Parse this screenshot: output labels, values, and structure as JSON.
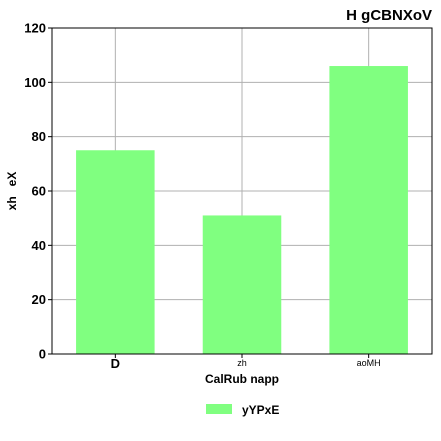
{
  "chart_data": {
    "type": "bar",
    "title": "H gCBNXoV",
    "xlabel": "CalRub napp",
    "ylabel": "xh   eX",
    "categories": [
      "D",
      "zh",
      "aoMH"
    ],
    "series": [
      {
        "name": "yYPxE",
        "values": [
          75,
          51,
          106
        ],
        "color": "#80ff80"
      }
    ],
    "ylim": [
      0,
      120
    ],
    "yticks": [
      0,
      20,
      40,
      60,
      80,
      100,
      120
    ],
    "grid": true,
    "legend_position": "bottom-center"
  }
}
